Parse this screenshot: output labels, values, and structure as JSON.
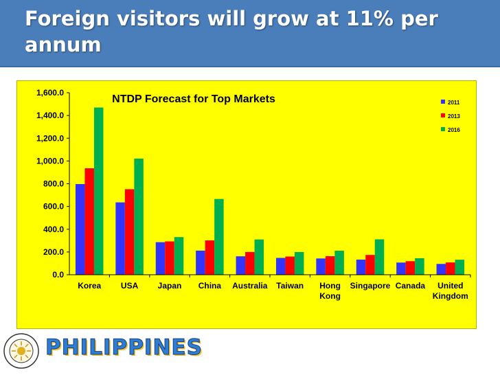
{
  "header": {
    "title": "Foreign visitors will grow at 11% per annum"
  },
  "chart_data": {
    "type": "bar",
    "title": "NTDP Forecast for Top Markets",
    "xlabel": "",
    "ylabel": "",
    "ylim": [
      0,
      1600
    ],
    "yticks": [
      "1,600.0",
      "1,400.0",
      "1,200.0",
      "1,000.0",
      "800.0",
      "600.0",
      "400.0",
      "200.0",
      "0.0"
    ],
    "categories": [
      {
        "lines": [
          "Korea"
        ]
      },
      {
        "lines": [
          "USA"
        ]
      },
      {
        "lines": [
          "Japan"
        ]
      },
      {
        "lines": [
          "China"
        ]
      },
      {
        "lines": [
          "Australia"
        ]
      },
      {
        "lines": [
          "Taiwan"
        ]
      },
      {
        "lines": [
          "Hong",
          "Kong"
        ]
      },
      {
        "lines": [
          "Singapore"
        ]
      },
      {
        "lines": [
          "Canada"
        ]
      },
      {
        "lines": [
          "United",
          "Kingdom"
        ]
      }
    ],
    "series": [
      {
        "name": "2011",
        "color": "#3333ff",
        "values": [
          797,
          636,
          286,
          212,
          162,
          148,
          143,
          133,
          107,
          95
        ]
      },
      {
        "name": "2013",
        "color": "#ff0000",
        "values": [
          936,
          752,
          293,
          302,
          200,
          160,
          163,
          174,
          119,
          108
        ]
      },
      {
        "name": "2016",
        "color": "#00b050",
        "values": [
          1470,
          1021,
          331,
          666,
          310,
          200,
          211,
          311,
          145,
          132
        ]
      }
    ],
    "grid": false,
    "legend": "top-right",
    "background": "#ffff00"
  },
  "brand": {
    "wordmark": "PHILIPPINES",
    "seal_text": "DEPARTMENT OF TOURISM PHILIPPINES"
  }
}
